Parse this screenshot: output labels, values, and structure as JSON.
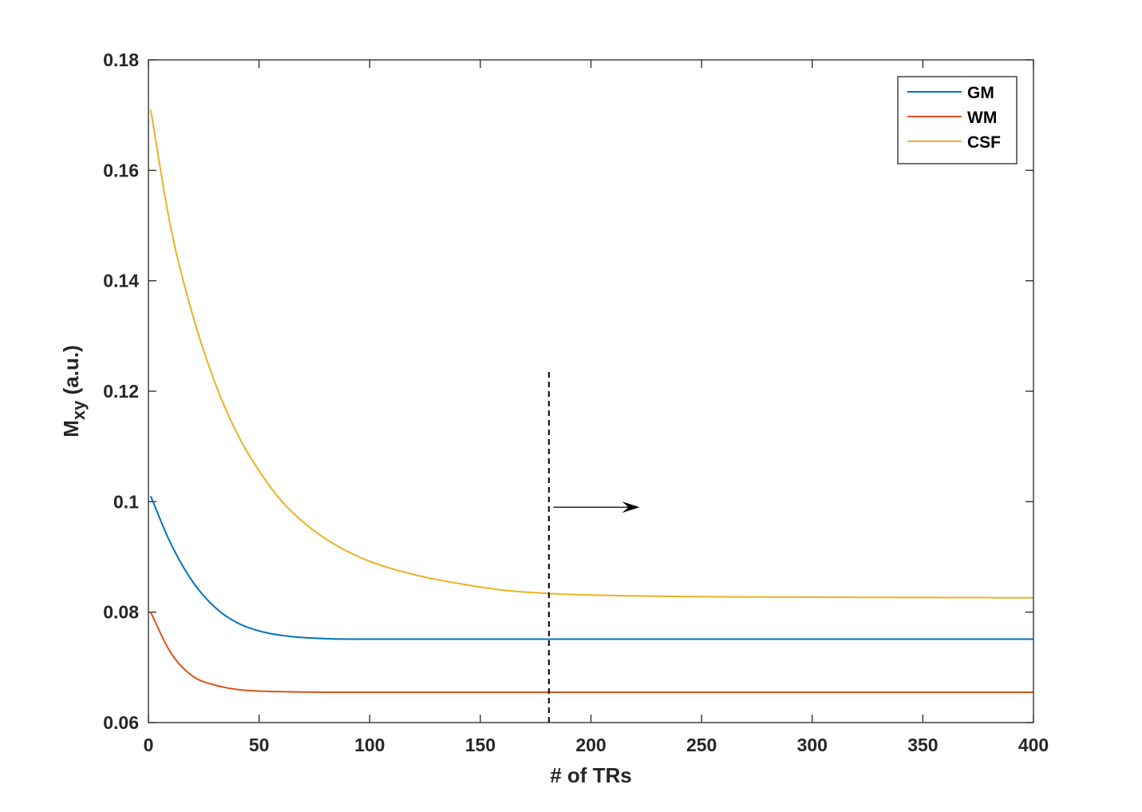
{
  "chart_data": {
    "type": "line",
    "xlabel": "# of TRs",
    "ylabel": {
      "main": "M",
      "sub": "xy",
      "rest": " (a.u.)"
    },
    "xlim": [
      0,
      400
    ],
    "ylim": [
      0.06,
      0.18
    ],
    "xticks": [
      0,
      50,
      100,
      150,
      200,
      250,
      300,
      350,
      400
    ],
    "xtick_labels": [
      "0",
      "50",
      "100",
      "150",
      "200",
      "250",
      "300",
      "350",
      "400"
    ],
    "yticks": [
      0.06,
      0.08,
      0.1,
      0.12,
      0.14,
      0.16,
      0.18
    ],
    "ytick_labels": [
      "0.06",
      "0.08",
      "0.1",
      "0.12",
      "0.14",
      "0.16",
      "0.18"
    ],
    "grid": false,
    "legend_position": "top-right",
    "series": [
      {
        "name": "GM",
        "color": "#0072BD",
        "x": [
          1,
          10,
          20,
          30,
          40,
          50,
          60,
          80,
          100,
          150,
          200,
          300,
          400
        ],
        "y": [
          0.101,
          0.0925,
          0.0855,
          0.0809,
          0.0781,
          0.0766,
          0.0758,
          0.0752,
          0.0751,
          0.0751,
          0.0751,
          0.0751,
          0.0751
        ]
      },
      {
        "name": "WM",
        "color": "#D95319",
        "x": [
          1,
          10,
          20,
          30,
          40,
          50,
          60,
          80,
          100,
          150,
          200,
          300,
          400
        ],
        "y": [
          0.08,
          0.0727,
          0.0684,
          0.0668,
          0.066,
          0.0657,
          0.0656,
          0.0655,
          0.0655,
          0.0655,
          0.0655,
          0.0655,
          0.0655
        ]
      },
      {
        "name": "CSF",
        "color": "#EDB120",
        "x": [
          1,
          10,
          20,
          30,
          40,
          50,
          60,
          70,
          80,
          90,
          100,
          120,
          140,
          160,
          180,
          200,
          250,
          300,
          400
        ],
        "y": [
          0.171,
          0.1498,
          0.1338,
          0.1216,
          0.1124,
          0.1056,
          0.1002,
          0.0963,
          0.0933,
          0.091,
          0.0892,
          0.0868,
          0.0852,
          0.084,
          0.0834,
          0.0831,
          0.0828,
          0.0827,
          0.0826
        ]
      }
    ],
    "annotations": [
      {
        "type": "vertical-dashed-line",
        "x": 181,
        "y_range": [
          0.06,
          0.1235
        ]
      },
      {
        "type": "arrow",
        "from": [
          183,
          0.099
        ],
        "to": [
          222,
          0.099
        ]
      }
    ]
  }
}
